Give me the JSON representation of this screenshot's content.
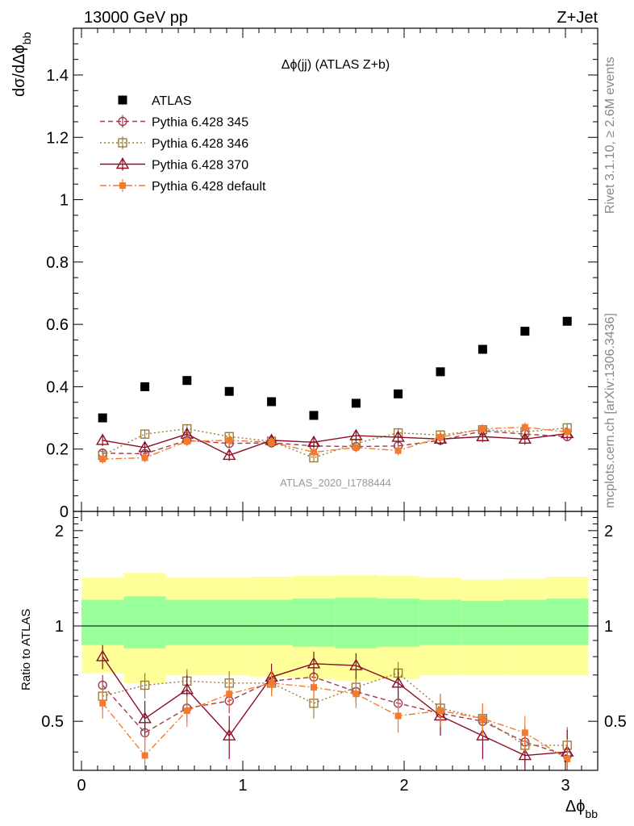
{
  "header": {
    "left": "13000 GeV pp",
    "right": "Z+Jet"
  },
  "side_labels": {
    "rivet": "Rivet 3.1.10, ≥ 2.6M events",
    "mcplots": "mcplots.cern.ch [arXiv:1306.3436]"
  },
  "watermark": "ATLAS_2020_I1788444",
  "chart_data": [
    {
      "type": "scatter",
      "panel": "main",
      "title": "Δϕ(jj) (ATLAS Z+b)",
      "ylabel": "dσ/dΔϕ_bb",
      "xlim": [
        -0.05,
        3.2
      ],
      "ylim": [
        0,
        1.55
      ],
      "yticks": [
        0,
        0.2,
        0.4,
        0.6,
        0.8,
        1,
        1.2,
        1.4
      ],
      "ytick_labels": [
        "0",
        "0.2",
        "0.4",
        "0.6",
        "0.8",
        "1",
        "1.2",
        "1.4"
      ],
      "x": [
        0.131,
        0.393,
        0.654,
        0.916,
        1.178,
        1.44,
        1.702,
        1.963,
        2.225,
        2.487,
        2.749,
        3.011
      ],
      "legend_position": "top-left",
      "series": [
        {
          "name": "ATLAS",
          "color": "#000000",
          "marker": "filled-square",
          "line": "none",
          "values": [
            0.3,
            0.4,
            0.42,
            0.385,
            0.352,
            0.308,
            0.347,
            0.377,
            0.448,
            0.52,
            0.578,
            0.61
          ]
        },
        {
          "name": "Pythia 6.428 345",
          "color": "#a23a4c",
          "marker": "open-circle",
          "line": "dashed",
          "values": [
            0.187,
            0.185,
            0.228,
            0.218,
            0.22,
            0.21,
            0.208,
            0.21,
            0.228,
            0.258,
            0.248,
            0.24
          ],
          "errors": [
            0.015,
            0.015,
            0.015,
            0.015,
            0.015,
            0.015,
            0.015,
            0.015,
            0.015,
            0.015,
            0.015,
            0.015
          ]
        },
        {
          "name": "Pythia 6.428 346",
          "color": "#9c7c3c",
          "marker": "open-square",
          "line": "dotted",
          "values": [
            0.18,
            0.248,
            0.265,
            0.24,
            0.225,
            0.172,
            0.218,
            0.252,
            0.245,
            0.262,
            0.255,
            0.268
          ],
          "errors": [
            0.015,
            0.015,
            0.015,
            0.015,
            0.015,
            0.015,
            0.015,
            0.015,
            0.015,
            0.015,
            0.015,
            0.015
          ]
        },
        {
          "name": "Pythia 6.428 370",
          "color": "#8b0e24",
          "marker": "open-triangle",
          "line": "solid",
          "values": [
            0.228,
            0.205,
            0.248,
            0.18,
            0.228,
            0.222,
            0.243,
            0.238,
            0.232,
            0.24,
            0.232,
            0.25
          ],
          "errors": [
            0.018,
            0.018,
            0.018,
            0.018,
            0.018,
            0.018,
            0.018,
            0.018,
            0.018,
            0.018,
            0.018,
            0.018
          ]
        },
        {
          "name": "Pythia 6.428 default",
          "color": "#f47b2e",
          "marker": "filled-small-square",
          "line": "dashdot",
          "values": [
            0.168,
            0.172,
            0.225,
            0.228,
            0.222,
            0.19,
            0.205,
            0.195,
            0.238,
            0.265,
            0.27,
            0.255
          ],
          "errors": [
            0.015,
            0.015,
            0.015,
            0.015,
            0.015,
            0.015,
            0.015,
            0.015,
            0.015,
            0.015,
            0.015,
            0.015
          ]
        }
      ]
    },
    {
      "type": "scatter",
      "panel": "ratio",
      "ylabel": "Ratio to ATLAS",
      "xlabel": "Δϕ_bb",
      "xlim": [
        -0.05,
        3.2
      ],
      "ylim": [
        0.35,
        2.3
      ],
      "xticks": [
        0,
        1,
        2,
        3
      ],
      "xtick_labels": [
        "0",
        "1",
        "2",
        "3"
      ],
      "yticks": [
        0.5,
        1,
        2
      ],
      "ytick_labels": [
        "0.5",
        "1",
        "2"
      ],
      "bin_edges": [
        0.0,
        0.262,
        0.524,
        0.785,
        1.047,
        1.309,
        1.571,
        1.833,
        2.094,
        2.356,
        2.618,
        2.88,
        3.142
      ],
      "band_outer": {
        "color": "#ffff99",
        "low": [
          0.71,
          0.66,
          0.7,
          0.7,
          0.69,
          0.68,
          0.67,
          0.68,
          0.7,
          0.7,
          0.7,
          0.7
        ],
        "high": [
          1.42,
          1.47,
          1.42,
          1.42,
          1.43,
          1.44,
          1.45,
          1.44,
          1.42,
          1.4,
          1.41,
          1.43
        ]
      },
      "band_inner": {
        "color": "#99ff99",
        "low": [
          0.87,
          0.85,
          0.87,
          0.87,
          0.87,
          0.86,
          0.85,
          0.86,
          0.87,
          0.87,
          0.87,
          0.87
        ],
        "high": [
          1.21,
          1.24,
          1.21,
          1.21,
          1.21,
          1.22,
          1.23,
          1.22,
          1.21,
          1.2,
          1.21,
          1.22
        ]
      },
      "x": [
        0.131,
        0.393,
        0.654,
        0.916,
        1.178,
        1.44,
        1.702,
        1.963,
        2.225,
        2.487,
        2.749,
        3.011
      ],
      "series": [
        {
          "name": "Pythia 6.428 345",
          "color": "#a23a4c",
          "marker": "open-circle",
          "line": "dashed",
          "values": [
            0.65,
            0.46,
            0.55,
            0.58,
            0.67,
            0.69,
            0.62,
            0.57,
            0.53,
            0.5,
            0.43,
            0.39
          ],
          "errors": [
            0.05,
            0.05,
            0.05,
            0.05,
            0.05,
            0.05,
            0.05,
            0.05,
            0.05,
            0.05,
            0.05,
            0.05
          ]
        },
        {
          "name": "Pythia 6.428 346",
          "color": "#9c7c3c",
          "marker": "open-square",
          "line": "dotted",
          "values": [
            0.6,
            0.65,
            0.67,
            0.66,
            0.66,
            0.57,
            0.64,
            0.71,
            0.55,
            0.51,
            0.42,
            0.42
          ],
          "errors": [
            0.06,
            0.06,
            0.06,
            0.06,
            0.06,
            0.06,
            0.06,
            0.06,
            0.06,
            0.06,
            0.06,
            0.06
          ]
        },
        {
          "name": "Pythia 6.428 370",
          "color": "#8b0e24",
          "marker": "open-triangle",
          "line": "solid",
          "values": [
            0.8,
            0.51,
            0.63,
            0.45,
            0.69,
            0.76,
            0.75,
            0.66,
            0.52,
            0.45,
            0.39,
            0.4
          ],
          "errors": [
            0.07,
            0.07,
            0.07,
            0.07,
            0.07,
            0.07,
            0.07,
            0.07,
            0.07,
            0.07,
            0.07,
            0.07
          ]
        },
        {
          "name": "Pythia 6.428 default",
          "color": "#f47b2e",
          "marker": "filled-small-square",
          "line": "dashdot",
          "values": [
            0.57,
            0.39,
            0.54,
            0.61,
            0.66,
            0.64,
            0.61,
            0.52,
            0.54,
            0.51,
            0.46,
            0.38
          ],
          "errors": [
            0.06,
            0.06,
            0.06,
            0.06,
            0.06,
            0.06,
            0.06,
            0.06,
            0.06,
            0.06,
            0.06,
            0.06
          ]
        }
      ]
    }
  ]
}
